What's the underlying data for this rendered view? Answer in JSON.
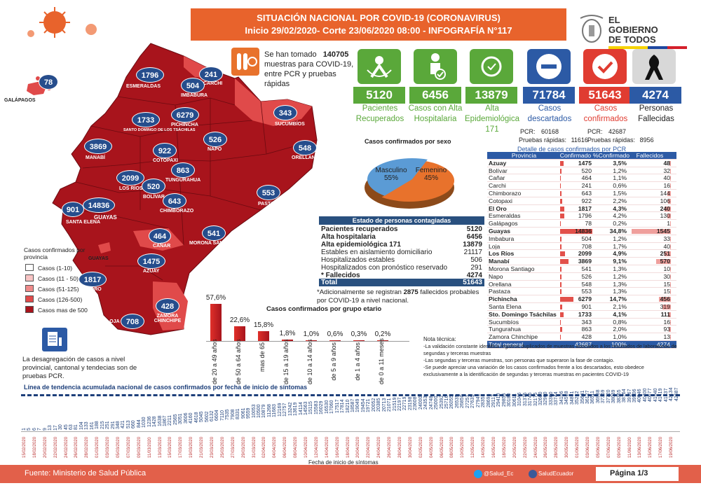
{
  "header": {
    "title_line1": "SITUACIÓN NACIONAL POR  COVID-19 (CORONAVIRUS)",
    "title_line2": "Inicio 29/02/2020- Corte 23/06/2020 08:00  - INFOGRAFÍA N°117",
    "logo_line1": "EL",
    "logo_line2": "GOBIERNO",
    "logo_line3": "DE TODOS"
  },
  "samples": {
    "prefix": "Se han tomado",
    "count": "140705",
    "suffix": "muestras para COVID-19, entre PCR y pruebas rápidas"
  },
  "kpis": [
    {
      "value": "5120",
      "label1": "Pacientes",
      "label2": "Recuperados",
      "label3": "",
      "color": "#5aa83a"
    },
    {
      "value": "6456",
      "label1": "Casos con Alta",
      "label2": "Hospitalaria",
      "label3": "",
      "color": "#5aa83a"
    },
    {
      "value": "13879",
      "label1": "Alta",
      "label2": "Epidemiológica",
      "label3": "171",
      "color": "#5aa83a"
    },
    {
      "value": "71784",
      "label1": "Casos",
      "label2": "descartados",
      "label3": "",
      "color": "#2c5aa5"
    },
    {
      "value": "51643",
      "label1": "Casos",
      "label2": "confirmados",
      "label3": "",
      "color": "#e03c31"
    },
    {
      "value": "4274",
      "label1": "Personas",
      "label2": "Fallecidas",
      "label3": "",
      "color": "#2c5aa5"
    }
  ],
  "tests": {
    "desc_pcr_label": "PCR:",
    "desc_pcr": "60168",
    "desc_rap_label": "Pruebas rápidas:",
    "desc_rap": "11616",
    "conf_pcr_label": "PCR:",
    "conf_pcr": "42687",
    "conf_rap_label": "Pruebas rápidas:",
    "conf_rap": "8956"
  },
  "sex_chart": {
    "title": "Casos confirmados por sexo",
    "male_label": "Masculino",
    "male_pct": "55%",
    "female_label": "Femenino",
    "female_pct": "45%",
    "male_color": "#e8722c",
    "female_color": "#5b9bd5"
  },
  "prov_table": {
    "title": "Detalle de casos confirmados por PCR",
    "headers": [
      "Provincia",
      "Confirmado",
      "%Confirmado",
      "Fallecidos"
    ],
    "rows": [
      {
        "p": "Azuay",
        "c": "1475",
        "pc": "3,5%",
        "f": "48",
        "bold": true
      },
      {
        "p": "Bolívar",
        "c": "520",
        "pc": "1,2%",
        "f": "32",
        "bold": false
      },
      {
        "p": "Cañar",
        "c": "464",
        "pc": "1,1%",
        "f": "40",
        "bold": false
      },
      {
        "p": "Carchi",
        "c": "241",
        "pc": "0,6%",
        "f": "16",
        "bold": false
      },
      {
        "p": "Chimborazo",
        "c": "643",
        "pc": "1,5%",
        "f": "144",
        "bold": false
      },
      {
        "p": "Cotopaxi",
        "c": "922",
        "pc": "2,2%",
        "f": "106",
        "bold": false
      },
      {
        "p": "El Oro",
        "c": "1817",
        "pc": "4,3%",
        "f": "240",
        "bold": true
      },
      {
        "p": "Esmeraldas",
        "c": "1796",
        "pc": "4,2%",
        "f": "130",
        "bold": false
      },
      {
        "p": "Galápagos",
        "c": "78",
        "pc": "0,2%",
        "f": "1",
        "bold": false
      },
      {
        "p": "Guayas",
        "c": "14836",
        "pc": "34,8%",
        "f": "1545",
        "bold": true
      },
      {
        "p": "Imbabura",
        "c": "504",
        "pc": "1,2%",
        "f": "33",
        "bold": false
      },
      {
        "p": "Loja",
        "c": "708",
        "pc": "1,7%",
        "f": "40",
        "bold": false
      },
      {
        "p": "Los Ríos",
        "c": "2099",
        "pc": "4,9%",
        "f": "251",
        "bold": true
      },
      {
        "p": "Manabí",
        "c": "3869",
        "pc": "9,1%",
        "f": "570",
        "bold": true
      },
      {
        "p": "Morona Santiago",
        "c": "541",
        "pc": "1,3%",
        "f": "10",
        "bold": false
      },
      {
        "p": "Napo",
        "c": "526",
        "pc": "1,2%",
        "f": "30",
        "bold": false
      },
      {
        "p": "Orellana",
        "c": "548",
        "pc": "1,3%",
        "f": "15",
        "bold": false
      },
      {
        "p": "Pastaza",
        "c": "553",
        "pc": "1,3%",
        "f": "15",
        "bold": false
      },
      {
        "p": "Pichincha",
        "c": "6279",
        "pc": "14,7%",
        "f": "456",
        "bold": true
      },
      {
        "p": "Santa Elena",
        "c": "901",
        "pc": "2,1%",
        "f": "319",
        "bold": false
      },
      {
        "p": "Sto. Domingo Tsáchilas",
        "c": "1733",
        "pc": "4,1%",
        "f": "111",
        "bold": true
      },
      {
        "p": "Sucumbíos",
        "c": "343",
        "pc": "0,8%",
        "f": "16",
        "bold": false
      },
      {
        "p": "Tungurahua",
        "c": "863",
        "pc": "2,0%",
        "f": "93",
        "bold": false
      },
      {
        "p": "Zamora Chinchipe",
        "c": "428",
        "pc": "1,0%",
        "f": "13",
        "bold": false
      }
    ],
    "total": {
      "p": "Total general",
      "c": "42687",
      "pc": "100%",
      "f": "4274"
    }
  },
  "contagion": {
    "title": "Estado de personas contagiadas",
    "rows": [
      {
        "label": "Pacientes recuperados",
        "value": "5120",
        "bold": true
      },
      {
        "label": "Alta hospitalaria",
        "value": "6456",
        "bold": true
      },
      {
        "label": "Alta epidemiológica 171",
        "value": "13879",
        "bold": true
      },
      {
        "label": "Estables en aislamiento domiciliario",
        "value": "21117",
        "bold": false
      },
      {
        "label": "Hospitalizados estables",
        "value": "506",
        "bold": false
      },
      {
        "label": "Hospitalizados con pronóstico reservado",
        "value": "291",
        "bold": false
      },
      {
        "label": "* Fallecidos",
        "value": "4274",
        "bold": true
      }
    ],
    "total_label": "Total",
    "total_value": "51643",
    "note_pre": "*Adicionalmente se registran",
    "note_num": "2875",
    "note_post": "fallecidos probables por COVID-19 a nivel nacional."
  },
  "chart_data": {
    "type": "bar",
    "title": "Casos confirmados por grupo etario",
    "categories": [
      "de 20 a 49 años",
      "de 50 a 64 años",
      "mas de 65",
      "de 15 a 19 años",
      "de 10 a 14 años",
      "de 5 a 9 años",
      "de 1 a 4 años",
      "de 0 a 11 meses"
    ],
    "values": [
      57.6,
      22.6,
      15.8,
      1.8,
      1.0,
      0.6,
      0.3,
      0.2
    ],
    "value_labels": [
      "57,6%",
      "22,6%",
      "15,8%",
      "1,8%",
      "1,0%",
      "0,6%",
      "0,3%",
      "0,2%"
    ],
    "ylim": [
      0,
      60
    ]
  },
  "notes": {
    "title": "Nota técnica:",
    "lines": [
      "-La validación constante identifica registros duplicados de muestras asociados a los resultados de laboratorios de segundas y terceras muestras",
      "-Las segundas y terceras muestras, son personas que superaron la fase de contagio.",
      "-Se puede apreciar una variación de los casos confirmados frente a los descartados, esto obedece exclusivamente a la identificación de segundas y terceras muestras en pacientes COVID-19"
    ]
  },
  "legend": {
    "title": "Casos confirmados por provincia",
    "items": [
      {
        "label": "Casos (1-10)",
        "color": "#ffffff"
      },
      {
        "label": "Casos (11 - 50)",
        "color": "#f8c4c4"
      },
      {
        "label": "Casos (51-125)",
        "color": "#ef8a8a"
      },
      {
        "label": "Casos (126-500)",
        "color": "#e04a4a"
      },
      {
        "label": "Casos mas de 500",
        "color": "#a8141c"
      }
    ]
  },
  "map": {
    "provinces": [
      {
        "n": "78",
        "name": "GALÁPAGOS"
      },
      {
        "n": "1796",
        "name": "ESMERALDAS"
      },
      {
        "n": "241",
        "name": "CARCHI"
      },
      {
        "n": "504",
        "name": "IMBABURA"
      },
      {
        "n": "1733",
        "name": "SANTO DOMINGO DE LOS TSÁCHILAS"
      },
      {
        "n": "6279",
        "name": "PICHINCHA"
      },
      {
        "n": "343",
        "name": "SUCUMBÍOS"
      },
      {
        "n": "3869",
        "name": "MANABÍ"
      },
      {
        "n": "922",
        "name": "COTOPAXI"
      },
      {
        "n": "526",
        "name": "NAPO"
      },
      {
        "n": "548",
        "name": "ORELLANA"
      },
      {
        "n": "863",
        "name": "TUNGURAHUA"
      },
      {
        "n": "2099",
        "name": "LOS RÍOS"
      },
      {
        "n": "520",
        "name": "BOLÍVAR"
      },
      {
        "n": "643",
        "name": "CHIMBORAZO"
      },
      {
        "n": "553",
        "name": "PASTAZA"
      },
      {
        "n": "901",
        "name": "SANTA ELENA"
      },
      {
        "n": "14836",
        "name": "GUAYAS"
      },
      {
        "n": "464",
        "name": "CAÑAR"
      },
      {
        "n": "541",
        "name": "MORONA SANTIAGO"
      },
      {
        "n": "1475",
        "name": "AZUAY"
      },
      {
        "n": "1817",
        "name": "EL ORO"
      },
      {
        "n": "428",
        "name": "ZAMORA CHINCHIPE"
      },
      {
        "n": "708",
        "name": "LOJA"
      }
    ],
    "guayas_label": "GUAYAS"
  },
  "desagregacion": "La desagregación de casos a nivel provincial, cantonal y tendecias son de pruebas PCR.",
  "trend": {
    "title": "Línea de tendencia acumulada nacional de casos confirmados por fecha de inicio de síntomas",
    "xlabel": "Fecha de inicio de síntomas",
    "values": [
      "1",
      "5",
      "6",
      "7",
      "9",
      "13",
      "17",
      "30",
      "45",
      "63",
      "81",
      "104",
      "133",
      "161",
      "188",
      "215",
      "251",
      "291",
      "348",
      "421",
      "513",
      "660",
      "844",
      "1030",
      "1236",
      "1428",
      "1638",
      "1867",
      "2211",
      "2565",
      "3051",
      "3606",
      "4160",
      "4618",
      "5045",
      "5602",
      "6132",
      "6604",
      "7110",
      "7535",
      "7908",
      "8331",
      "9061",
      "9559",
      "10053",
      "10500",
      "10879",
      "11268",
      "11683",
      "12169",
      "12757",
      "13242",
      "13619",
      "14114",
      "14563",
      "15115",
      "15583",
      "16029",
      "16530",
      "17060",
      "17517",
      "17814",
      "18210",
      "18587",
      "19049",
      "19454",
      "19721",
      "20052",
      "20385",
      "20713",
      "21071",
      "21519",
      "22197",
      "22719",
      "23198",
      "23608",
      "24000",
      "24353",
      "24748",
      "25000",
      "25392",
      "25716",
      "26055",
      "26535",
      "26850",
      "27251",
      "27635",
      "27941",
      "28351",
      "28693",
      "29117",
      "29410",
      "29855",
      "30180",
      "30611",
      "31046",
      "31375",
      "31746",
      "32175",
      "32600",
      "32960",
      "33360",
      "33744",
      "34106",
      "34518",
      "34851",
      "35212",
      "35641",
      "36127",
      "36511",
      "36988",
      "37359",
      "37720",
      "38039",
      "38365",
      "38764",
      "39167",
      "39506",
      "40046",
      "40400",
      "40677",
      "41040",
      "41419",
      "41837",
      "42134",
      "42687"
    ],
    "dates": [
      "15/02/2020",
      "18/02/2020",
      "20/02/2020",
      "22/02/2020",
      "24/02/2020",
      "26/02/2020",
      "28/02/2020",
      "01/03/2020",
      "03/03/2020",
      "05/03/2020",
      "07/03/2020",
      "09/03/2020",
      "11/03/2020",
      "13/03/2020",
      "15/03/2020",
      "17/03/2020",
      "19/03/2020",
      "21/03/2020",
      "23/03/2020",
      "25/03/2020",
      "27/03/2020",
      "29/03/2020",
      "31/03/2020",
      "02/04/2020",
      "04/04/2020",
      "06/04/2020",
      "08/04/2020",
      "10/04/2020",
      "12/04/2020",
      "14/04/2020",
      "16/04/2020",
      "18/04/2020",
      "20/04/2020",
      "22/04/2020",
      "24/04/2020",
      "26/04/2020",
      "28/04/2020",
      "30/04/2020",
      "02/05/2020",
      "04/05/2020",
      "06/05/2020",
      "08/05/2020",
      "10/05/2020",
      "12/05/2020",
      "14/05/2020",
      "16/05/2020",
      "18/05/2020",
      "20/05/2020",
      "22/05/2020",
      "24/05/2020",
      "26/05/2020",
      "28/05/2020",
      "30/05/2020",
      "01/06/2020",
      "03/06/2020",
      "05/06/2020",
      "07/06/2020",
      "09/06/2020",
      "11/06/2020",
      "13/06/2020",
      "15/06/2020",
      "17/06/2020",
      "19/06/2020"
    ]
  },
  "footer": {
    "source_label": "Fuente:",
    "source": "Ministerio de Salud Pública",
    "twitter": "@Salud_Ec",
    "facebook": "SaludEcuador",
    "page": "Página 1/3"
  },
  "colors": {
    "accent_orange": "#e8632c",
    "map_dark": "#a8141c",
    "map_mid": "#e04a4a",
    "badge_blue": "#264d8c",
    "footer": "#e2604a"
  }
}
